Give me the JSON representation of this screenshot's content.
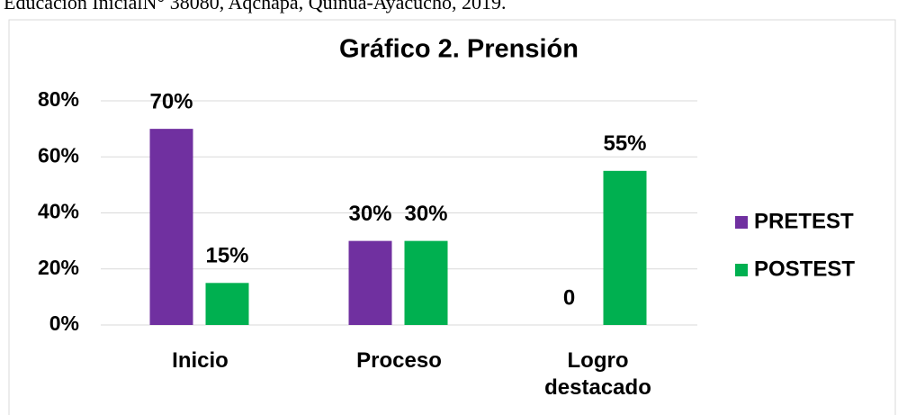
{
  "caption": "Educación InicialN° 38080, Aqchapa, Quinua-Ayacucho, 2019.",
  "chart_data": {
    "type": "bar",
    "title": "Gráfico 2. Prensión",
    "categories": [
      "Inicio",
      "Proceso",
      "Logro destacado"
    ],
    "series": [
      {
        "name": "PRETEST",
        "color": "#7030a0",
        "values": [
          70,
          30,
          0
        ],
        "value_labels": [
          "70%",
          "30%",
          "0"
        ]
      },
      {
        "name": "POSTEST",
        "color": "#00b050",
        "values": [
          15,
          30,
          55
        ],
        "value_labels": [
          "15%",
          "30%",
          "55%"
        ]
      }
    ],
    "ylim": [
      0,
      80
    ],
    "yticks": [
      {
        "value": 0,
        "label": "0%"
      },
      {
        "value": 20,
        "label": "20%"
      },
      {
        "value": 40,
        "label": "40%"
      },
      {
        "value": 60,
        "label": "60%"
      },
      {
        "value": 80,
        "label": "80%"
      }
    ],
    "grid": true,
    "legend": "right"
  }
}
